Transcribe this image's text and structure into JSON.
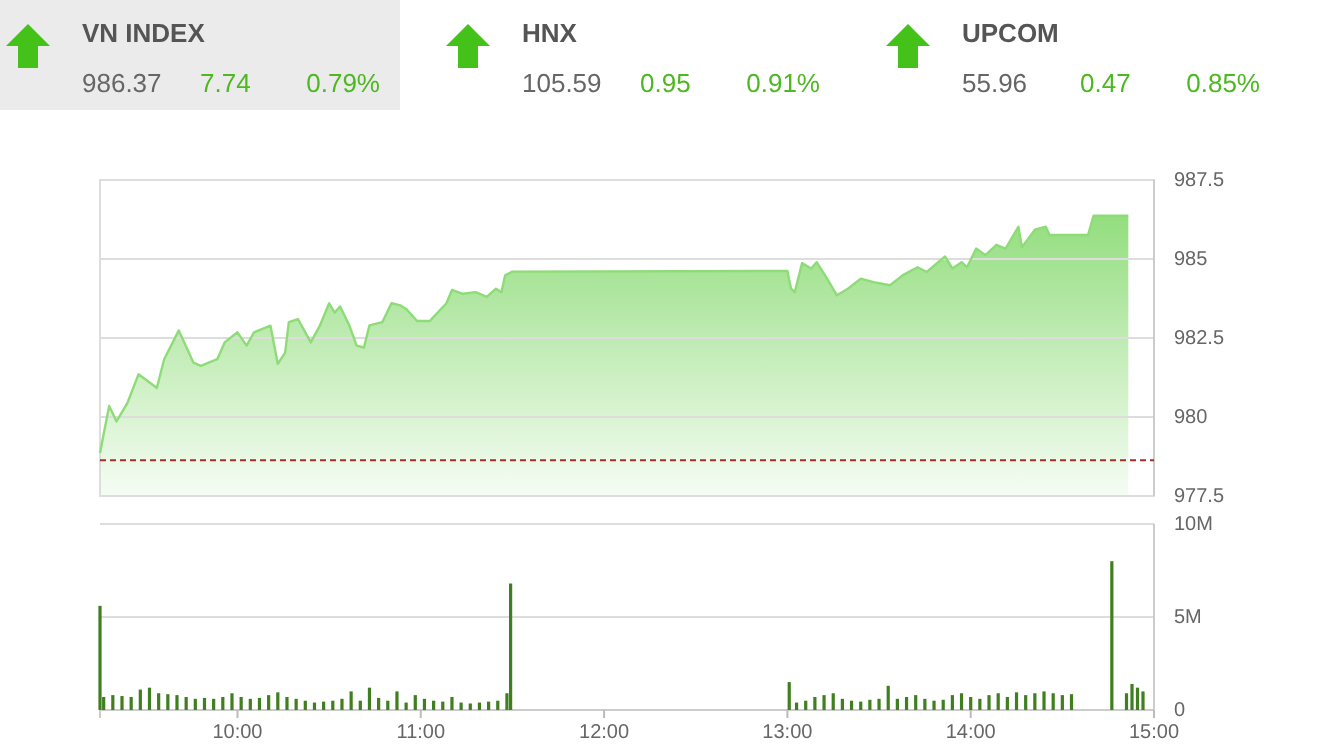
{
  "chart_data": [
    {
      "type": "other",
      "title": "VN INDEX",
      "annotations": [
        "986.37",
        "7.74",
        "0.79%"
      ]
    },
    {
      "type": "other",
      "title": "HNX",
      "annotations": [
        "105.59",
        "0.95",
        "0.91%"
      ]
    },
    {
      "type": "other",
      "title": "UPCOM",
      "annotations": [
        "55.96",
        "0.47",
        "0.85%"
      ]
    },
    {
      "type": "area",
      "color": "#8edc78",
      "x": [
        9.25,
        9.3,
        9.34,
        9.4,
        9.46,
        9.53,
        9.56,
        9.6,
        9.68,
        9.76,
        9.8,
        9.89,
        9.93,
        10.0,
        10.05,
        10.09,
        10.18,
        10.22,
        10.26,
        10.28,
        10.33,
        10.4,
        10.45,
        10.5,
        10.53,
        10.56,
        10.61,
        10.65,
        10.69,
        10.72,
        10.79,
        10.84,
        10.89,
        10.92,
        10.98,
        11.05,
        11.14,
        11.17,
        11.23,
        11.3,
        11.36,
        11.41,
        11.44,
        11.46,
        11.5,
        13.0,
        13.02,
        13.04,
        13.08,
        13.13,
        13.16,
        13.22,
        13.27,
        13.33,
        13.4,
        13.47,
        13.56,
        13.63,
        13.71,
        13.76,
        13.86,
        13.9,
        13.95,
        13.98,
        14.03,
        14.08,
        14.14,
        14.19,
        14.26,
        14.28,
        14.35,
        14.41,
        14.43,
        14.64,
        14.67,
        14.86
      ],
      "values": [
        978.86,
        980.35,
        979.86,
        980.45,
        981.35,
        981.05,
        980.92,
        981.83,
        982.74,
        981.72,
        981.62,
        981.83,
        982.36,
        982.68,
        982.26,
        982.68,
        982.89,
        981.68,
        982.04,
        983.0,
        983.1,
        982.36,
        982.9,
        983.6,
        983.3,
        983.5,
        982.9,
        982.26,
        982.2,
        982.9,
        983.0,
        983.6,
        983.53,
        983.42,
        983.04,
        983.04,
        983.6,
        984.02,
        983.9,
        983.95,
        983.8,
        984.06,
        983.95,
        984.48,
        984.6,
        984.62,
        984.06,
        983.95,
        984.87,
        984.7,
        984.9,
        984.35,
        983.85,
        984.06,
        984.38,
        984.27,
        984.17,
        984.49,
        984.74,
        984.59,
        985.08,
        984.7,
        984.9,
        984.74,
        985.33,
        985.12,
        985.45,
        985.33,
        986.02,
        985.37,
        985.93,
        986.02,
        985.76,
        985.76,
        986.37,
        986.37
      ],
      "xlim": [
        9.25,
        15.0
      ],
      "ylim": [
        977.5,
        987.5
      ],
      "yticks": [
        977.5,
        980,
        982.5,
        985,
        987.5
      ],
      "grid": "y",
      "tick_labels": "y",
      "ref_lines": [
        {
          "axis": "y",
          "value": 978.63,
          "color": "#a0302a",
          "line_style": "dashed"
        }
      ]
    },
    {
      "type": "bar",
      "color": "#3f7f1f",
      "x": [
        9.25,
        9.27,
        9.32,
        9.37,
        9.42,
        9.47,
        9.52,
        9.57,
        9.62,
        9.67,
        9.72,
        9.77,
        9.82,
        9.87,
        9.92,
        9.97,
        10.02,
        10.07,
        10.12,
        10.17,
        10.22,
        10.27,
        10.32,
        10.37,
        10.42,
        10.47,
        10.52,
        10.57,
        10.62,
        10.67,
        10.72,
        10.77,
        10.82,
        10.87,
        10.92,
        10.97,
        11.02,
        11.07,
        11.12,
        11.17,
        11.22,
        11.27,
        11.32,
        11.37,
        11.42,
        11.47,
        11.49,
        13.01,
        13.05,
        13.1,
        13.15,
        13.2,
        13.25,
        13.3,
        13.35,
        13.4,
        13.45,
        13.5,
        13.55,
        13.6,
        13.65,
        13.7,
        13.75,
        13.8,
        13.85,
        13.9,
        13.95,
        14.0,
        14.05,
        14.1,
        14.15,
        14.2,
        14.25,
        14.3,
        14.35,
        14.4,
        14.45,
        14.5,
        14.55,
        14.77,
        14.85,
        14.88,
        14.91,
        14.94
      ],
      "values": [
        5600000,
        700000,
        800000,
        750000,
        700000,
        1100000,
        1200000,
        900000,
        850000,
        800000,
        700000,
        600000,
        650000,
        600000,
        700000,
        900000,
        700000,
        600000,
        650000,
        800000,
        950000,
        700000,
        600000,
        500000,
        400000,
        450000,
        500000,
        600000,
        1000000,
        500000,
        1200000,
        650000,
        500000,
        1000000,
        400000,
        800000,
        600000,
        500000,
        450000,
        700000,
        400000,
        350000,
        400000,
        450000,
        500000,
        900000,
        6800000,
        1500000,
        400000,
        500000,
        700000,
        800000,
        900000,
        600000,
        500000,
        450000,
        550000,
        600000,
        1300000,
        600000,
        700000,
        800000,
        600000,
        500000,
        550000,
        800000,
        900000,
        700000,
        600000,
        800000,
        900000,
        700000,
        950000,
        800000,
        900000,
        1000000,
        900000,
        800000,
        850000,
        8000000,
        900000,
        1400000,
        1200000,
        1000000
      ],
      "xlim": [
        9.25,
        15.0
      ],
      "xticks": [
        {
          "value": 10,
          "label": "10:00"
        },
        {
          "value": 11,
          "label": "11:00"
        },
        {
          "value": 12,
          "label": "12:00"
        },
        {
          "value": 13,
          "label": "13:00"
        },
        {
          "value": 14,
          "label": "14:00"
        },
        {
          "value": 15,
          "label": "15:00"
        }
      ],
      "ylim": [
        0,
        10000000
      ],
      "yticks": [
        0,
        {
          "value": 5000000,
          "label": "5M"
        },
        {
          "value": 10000000,
          "label": "10M"
        }
      ],
      "grid": "y"
    }
  ]
}
